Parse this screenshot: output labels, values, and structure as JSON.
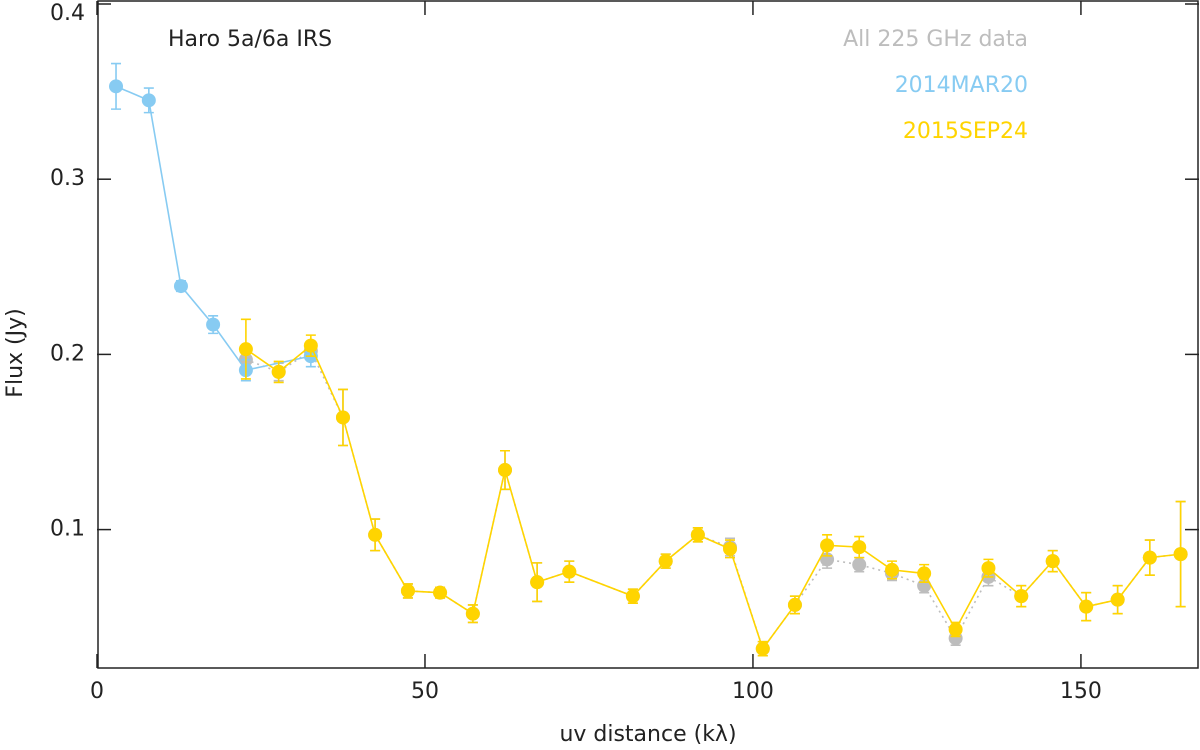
{
  "chart_data": {
    "type": "scatter",
    "annotation": "Haro 5a/6a IRS",
    "x_label": "uv distance (kλ)",
    "y_label": "Flux (Jy)",
    "xlim": [
      0,
      168
    ],
    "ylim": [
      0.021,
      0.4
    ],
    "xticks": [
      0,
      50,
      100,
      150
    ],
    "yticks": [
      0.1,
      0.2,
      0.3,
      0.4
    ],
    "legend": "upper right",
    "series": [
      {
        "name": "All 225 GHz data",
        "color": "#bdbdbd",
        "line": "dotted",
        "x": [
          22.7,
          27.7,
          32.6,
          37.5,
          42.4,
          47.4,
          52.3,
          57.3,
          62.2,
          67.1,
          72,
          81.7,
          86.7,
          91.6,
          96.5,
          101.5,
          106.4,
          111.3,
          116.2,
          121.2,
          126.1,
          130.9,
          135.9,
          140.9,
          145.7,
          150.8,
          155.6,
          160.5,
          165.2
        ],
        "values": [
          0.197,
          0.19,
          0.202,
          0.164,
          0.097,
          0.065,
          0.064,
          0.052,
          0.134,
          0.07,
          0.076,
          0.062,
          0.082,
          0.097,
          0.09,
          0.032,
          0.057,
          0.083,
          0.08,
          0.075,
          0.068,
          0.038,
          0.073,
          0.062,
          0.082,
          0.056,
          0.06,
          0.084,
          0.086
        ],
        "errors": [
          0.006,
          0.005,
          0.005,
          0.016,
          0.009,
          0.004,
          0.003,
          0.005,
          0.011,
          0.011,
          0.006,
          0.004,
          0.004,
          0.004,
          0.005,
          0.004,
          0.005,
          0.005,
          0.004,
          0.004,
          0.004,
          0.004,
          0.005,
          0.006,
          0.006,
          0.008,
          0.008,
          0.01,
          0.03
        ]
      },
      {
        "name": "2014MAR20",
        "color": "#87cbf2",
        "line": "solid",
        "x": [
          2.9,
          7.9,
          12.8,
          17.7,
          22.7,
          32.6
        ],
        "values": [
          0.353,
          0.345,
          0.239,
          0.217,
          0.191,
          0.199
        ],
        "errors": [
          0.013,
          0.007,
          0.003,
          0.005,
          0.006,
          0.006
        ]
      },
      {
        "name": "2015SEP24",
        "color": "#ffd400",
        "line": "solid",
        "x": [
          22.7,
          27.7,
          32.6,
          37.5,
          42.4,
          47.4,
          52.3,
          57.3,
          62.2,
          67.1,
          72,
          81.7,
          86.7,
          91.6,
          96.5,
          101.5,
          106.4,
          111.3,
          116.2,
          121.2,
          126.1,
          130.9,
          135.9,
          140.9,
          145.7,
          150.8,
          155.6,
          160.5,
          165.2
        ],
        "values": [
          0.203,
          0.19,
          0.205,
          0.164,
          0.097,
          0.065,
          0.064,
          0.052,
          0.134,
          0.07,
          0.076,
          0.062,
          0.082,
          0.097,
          0.089,
          0.032,
          0.057,
          0.091,
          0.09,
          0.077,
          0.075,
          0.043,
          0.078,
          0.062,
          0.082,
          0.056,
          0.06,
          0.084,
          0.086
        ],
        "errors": [
          0.017,
          0.006,
          0.006,
          0.016,
          0.009,
          0.004,
          0.003,
          0.005,
          0.011,
          0.011,
          0.006,
          0.004,
          0.004,
          0.004,
          0.005,
          0.004,
          0.005,
          0.006,
          0.006,
          0.005,
          0.005,
          0.004,
          0.005,
          0.006,
          0.006,
          0.008,
          0.008,
          0.01,
          0.03
        ]
      }
    ]
  }
}
